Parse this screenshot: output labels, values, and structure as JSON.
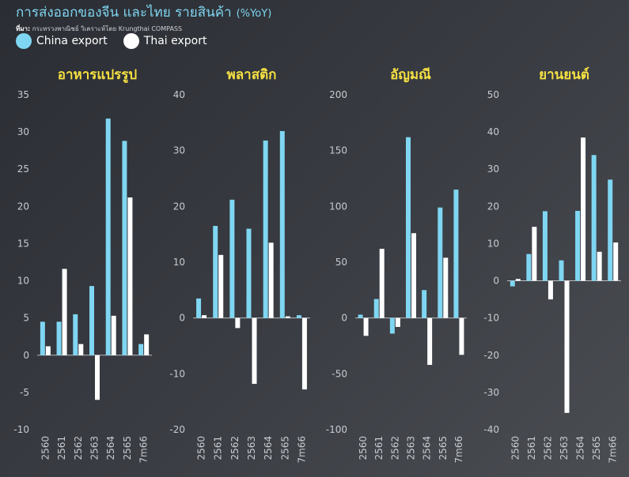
{
  "header": {
    "title": "การส่งออกของจีน และไทย รายสินค้า",
    "unit": "(%YoY)",
    "source_label": "ที่มา:",
    "source_text": "กระทรวงพาณิชย์ วิเคราะห์โดย Krungthai COMPASS"
  },
  "legend": [
    {
      "label": "China export",
      "color": "#7fd6f2"
    },
    {
      "label": "Thai export",
      "color": "#ffffff"
    }
  ],
  "colors": {
    "china": "#7fd6f2",
    "thai": "#ffffff",
    "title": "#f5e042",
    "axis": "#c8cbd0"
  },
  "chart_data": [
    {
      "type": "bar",
      "title": "อาหารแปรรูป",
      "categories": [
        "2560",
        "2561",
        "2562",
        "2563",
        "2564",
        "2565",
        "7m66"
      ],
      "ylim": [
        -10,
        35
      ],
      "yticks": [
        -10,
        -5,
        0,
        5,
        10,
        15,
        20,
        25,
        30,
        35
      ],
      "series": [
        {
          "name": "China export",
          "values": [
            4.5,
            4.5,
            5.5,
            9.3,
            31.8,
            28.8,
            1.5
          ]
        },
        {
          "name": "Thai export",
          "values": [
            1.2,
            11.6,
            1.5,
            -6.0,
            5.3,
            21.2,
            2.8
          ]
        }
      ]
    },
    {
      "type": "bar",
      "title": "พลาสติก",
      "categories": [
        "2560",
        "2561",
        "2562",
        "2563",
        "2564",
        "2565",
        "7m66"
      ],
      "ylim": [
        -20,
        40
      ],
      "yticks": [
        -20,
        -10,
        0,
        10,
        20,
        30,
        40
      ],
      "series": [
        {
          "name": "China export",
          "values": [
            3.5,
            16.5,
            21.2,
            16.0,
            31.8,
            33.5,
            0.5
          ]
        },
        {
          "name": "Thai export",
          "values": [
            0.5,
            11.3,
            -1.8,
            -11.8,
            13.5,
            0.3,
            -12.8
          ]
        }
      ]
    },
    {
      "type": "bar",
      "title": "อัญมณี",
      "categories": [
        "2560",
        "2561",
        "2562",
        "2563",
        "2564",
        "2565",
        "7m66"
      ],
      "ylim": [
        -100,
        200
      ],
      "yticks": [
        -100,
        -50,
        0,
        50,
        100,
        150,
        200
      ],
      "series": [
        {
          "name": "China export",
          "values": [
            3,
            17,
            -14,
            162,
            25,
            99,
            115
          ]
        },
        {
          "name": "Thai export",
          "values": [
            -16,
            62,
            -8,
            76,
            -42,
            54,
            -33
          ]
        }
      ]
    },
    {
      "type": "bar",
      "title": "ยานยนต์",
      "categories": [
        "2560",
        "2561",
        "2562",
        "2563",
        "2564",
        "2565",
        "7m66"
      ],
      "ylim": [
        -40,
        50
      ],
      "yticks": [
        -40,
        -30,
        -20,
        -10,
        0,
        10,
        20,
        30,
        40,
        50
      ],
      "series": [
        {
          "name": "China export",
          "values": [
            -1.5,
            7.2,
            18.7,
            5.5,
            18.8,
            33.8,
            27.2
          ]
        },
        {
          "name": "Thai export",
          "values": [
            0.5,
            14.5,
            -5.0,
            -35.5,
            38.5,
            7.8,
            10.3
          ]
        }
      ]
    }
  ]
}
